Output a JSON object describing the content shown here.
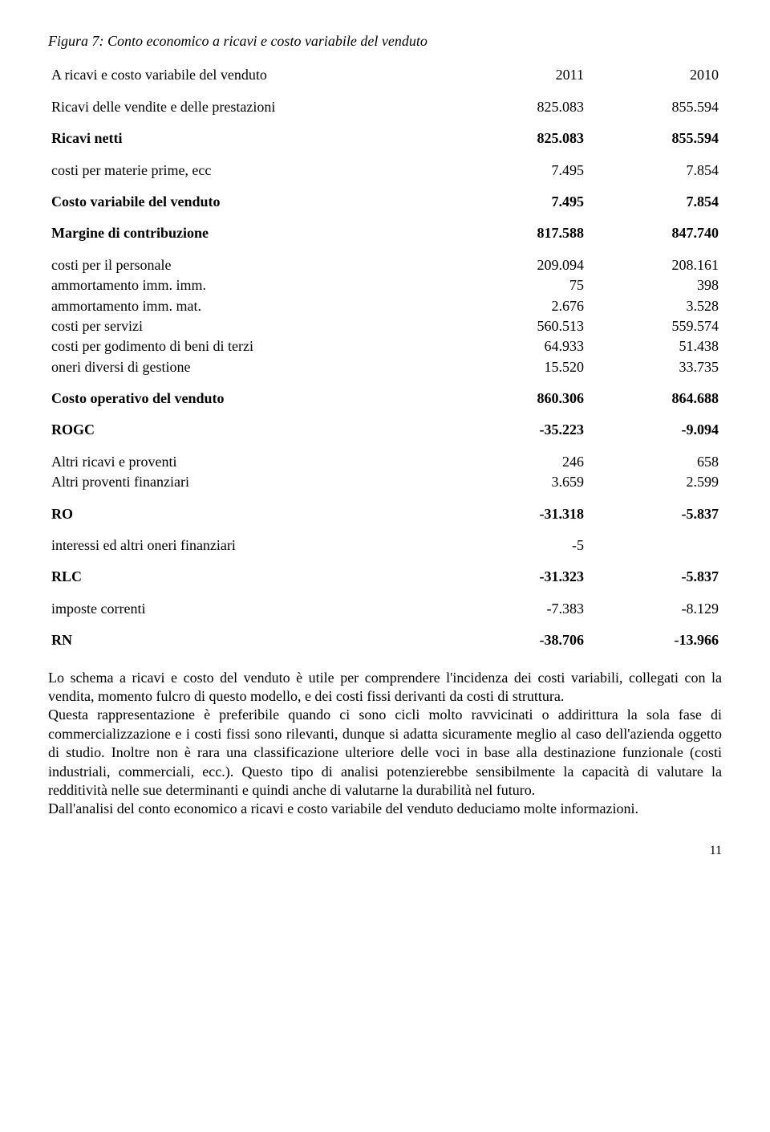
{
  "caption": "Figura 7: Conto economico a ricavi e costo variabile del venduto",
  "table": {
    "header": {
      "label": "A ricavi e costo variabile del venduto",
      "c1": "2011",
      "c2": "2010"
    },
    "r1": {
      "label": "Ricavi delle vendite e delle prestazioni",
      "c1": "825.083",
      "c2": "855.594"
    },
    "r2": {
      "label": "Ricavi netti",
      "c1": "825.083",
      "c2": "855.594"
    },
    "r3": {
      "label": "costi per materie prime, ecc",
      "c1": "7.495",
      "c2": "7.854"
    },
    "r4": {
      "label": "Costo variabile del venduto",
      "c1": "7.495",
      "c2": "7.854"
    },
    "r5": {
      "label": "Margine di contribuzione",
      "c1": "817.588",
      "c2": "847.740"
    },
    "r6": {
      "label": "costi per il personale",
      "c1": "209.094",
      "c2": "208.161"
    },
    "r7": {
      "label": "ammortamento imm. imm.",
      "c1": "75",
      "c2": "398"
    },
    "r8": {
      "label": "ammortamento imm. mat.",
      "c1": "2.676",
      "c2": "3.528"
    },
    "r9": {
      "label": "costi per servizi",
      "c1": "560.513",
      "c2": "559.574"
    },
    "r10": {
      "label": "costi per godimento di beni di terzi",
      "c1": "64.933",
      "c2": "51.438"
    },
    "r11": {
      "label": "oneri diversi di gestione",
      "c1": "15.520",
      "c2": "33.735"
    },
    "r12": {
      "label": "Costo operativo del venduto",
      "c1": "860.306",
      "c2": "864.688"
    },
    "r13": {
      "label": "ROGC",
      "c1": "-35.223",
      "c2": "-9.094"
    },
    "r14": {
      "label": "Altri ricavi e proventi",
      "c1": "246",
      "c2": "658"
    },
    "r15": {
      "label": "Altri proventi finanziari",
      "c1": "3.659",
      "c2": "2.599"
    },
    "r16": {
      "label": "RO",
      "c1": "-31.318",
      "c2": "-5.837"
    },
    "r17": {
      "label": "interessi ed altri oneri finanziari",
      "c1": "-5",
      "c2": ""
    },
    "r18": {
      "label": "RLC",
      "c1": "-31.323",
      "c2": "-5.837"
    },
    "r19": {
      "label": "imposte correnti",
      "c1": "-7.383",
      "c2": "-8.129"
    },
    "r20": {
      "label": "RN",
      "c1": "-38.706",
      "c2": "-13.966"
    }
  },
  "paragraphs": {
    "p1": "Lo schema a ricavi e costo del venduto è utile per comprendere l'incidenza dei costi variabili, collegati con la vendita, momento fulcro di questo modello, e dei costi fissi derivanti da costi di struttura.",
    "p2": "Questa rappresentazione è preferibile quando ci sono cicli molto ravvicinati o addirittura la sola fase di commercializzazione e i costi fissi sono rilevanti, dunque si adatta sicuramente meglio al caso dell'azienda oggetto di studio. Inoltre non è rara una classificazione ulteriore delle voci in base alla destinazione funzionale (costi industriali, commerciali, ecc.). Questo tipo di analisi potenzierebbe sensibilmente la capacità di valutare la redditività nelle sue determinanti e quindi anche di valutarne la durabilità nel futuro.",
    "p3": "Dall'analisi del conto economico a ricavi e costo variabile del venduto deduciamo molte informazioni."
  },
  "pageNumber": "11"
}
